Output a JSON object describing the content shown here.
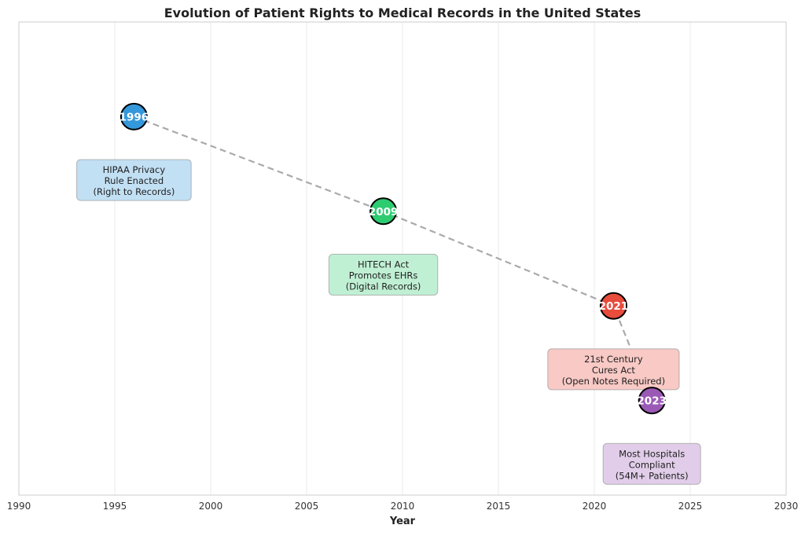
{
  "chart_data": {
    "type": "scatter",
    "title": "Evolution of Patient Rights to Medical Records in the United States",
    "xlabel": "Year",
    "ylabel": "",
    "xlim": [
      1990,
      2030
    ],
    "ylim": [
      0,
      5
    ],
    "xticks": [
      1990,
      1995,
      2000,
      2005,
      2010,
      2015,
      2020,
      2025,
      2030
    ],
    "grid": "vertical",
    "connector": {
      "style": "dashed",
      "color": "#aaaaaa"
    },
    "points": [
      {
        "x": 1996,
        "y": 4,
        "label": "1996",
        "color": "#3498db",
        "annotation": [
          "HIPAA Privacy",
          "Rule Enacted",
          "(Right to Records)"
        ]
      },
      {
        "x": 2009,
        "y": 3,
        "label": "2009",
        "color": "#2ecc71",
        "annotation": [
          "HITECH Act",
          "Promotes EHRs",
          "(Digital Records)"
        ]
      },
      {
        "x": 2021,
        "y": 2,
        "label": "2021",
        "color": "#e74c3c",
        "annotation": [
          "21st Century",
          "Cures Act",
          "(Open Notes Required)"
        ]
      },
      {
        "x": 2023,
        "y": 1,
        "label": "2023",
        "color": "#9b59b6",
        "annotation": [
          "Most Hospitals",
          "Compliant",
          "(54M+ Patients)"
        ]
      }
    ]
  }
}
